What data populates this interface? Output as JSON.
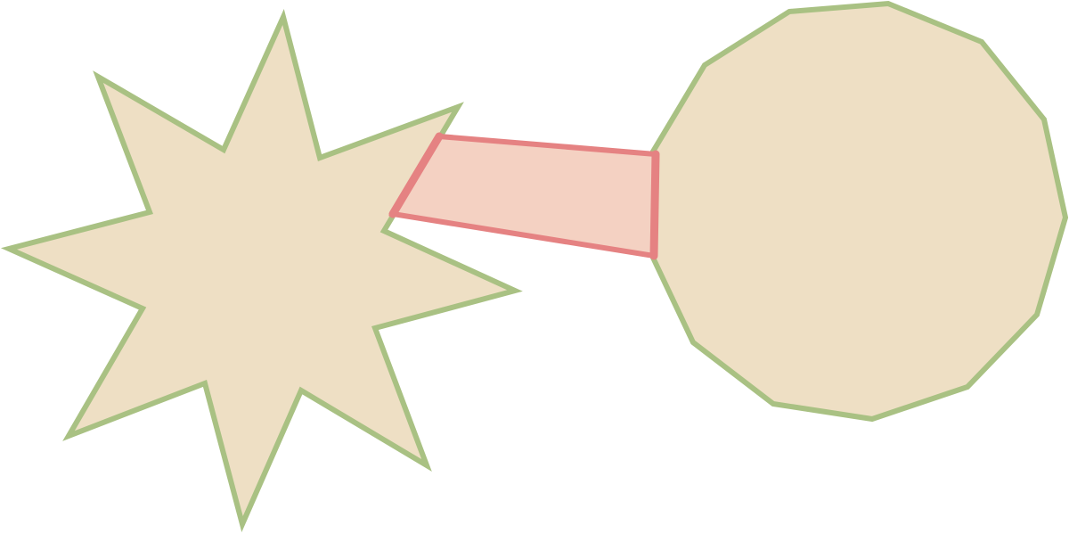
{
  "colors": {
    "shape_fill": "#EEDFC4",
    "shape_stroke": "#A9C183",
    "connector_fill": "#F4D1C2",
    "connector_stroke": "#E58282",
    "background": "#FFFFFF"
  },
  "shapes": {
    "star": {
      "kind": "eight-point-star"
    },
    "polygon": {
      "kind": "dodecagon"
    },
    "connector": {
      "kind": "quadrilateral-bridge"
    }
  }
}
